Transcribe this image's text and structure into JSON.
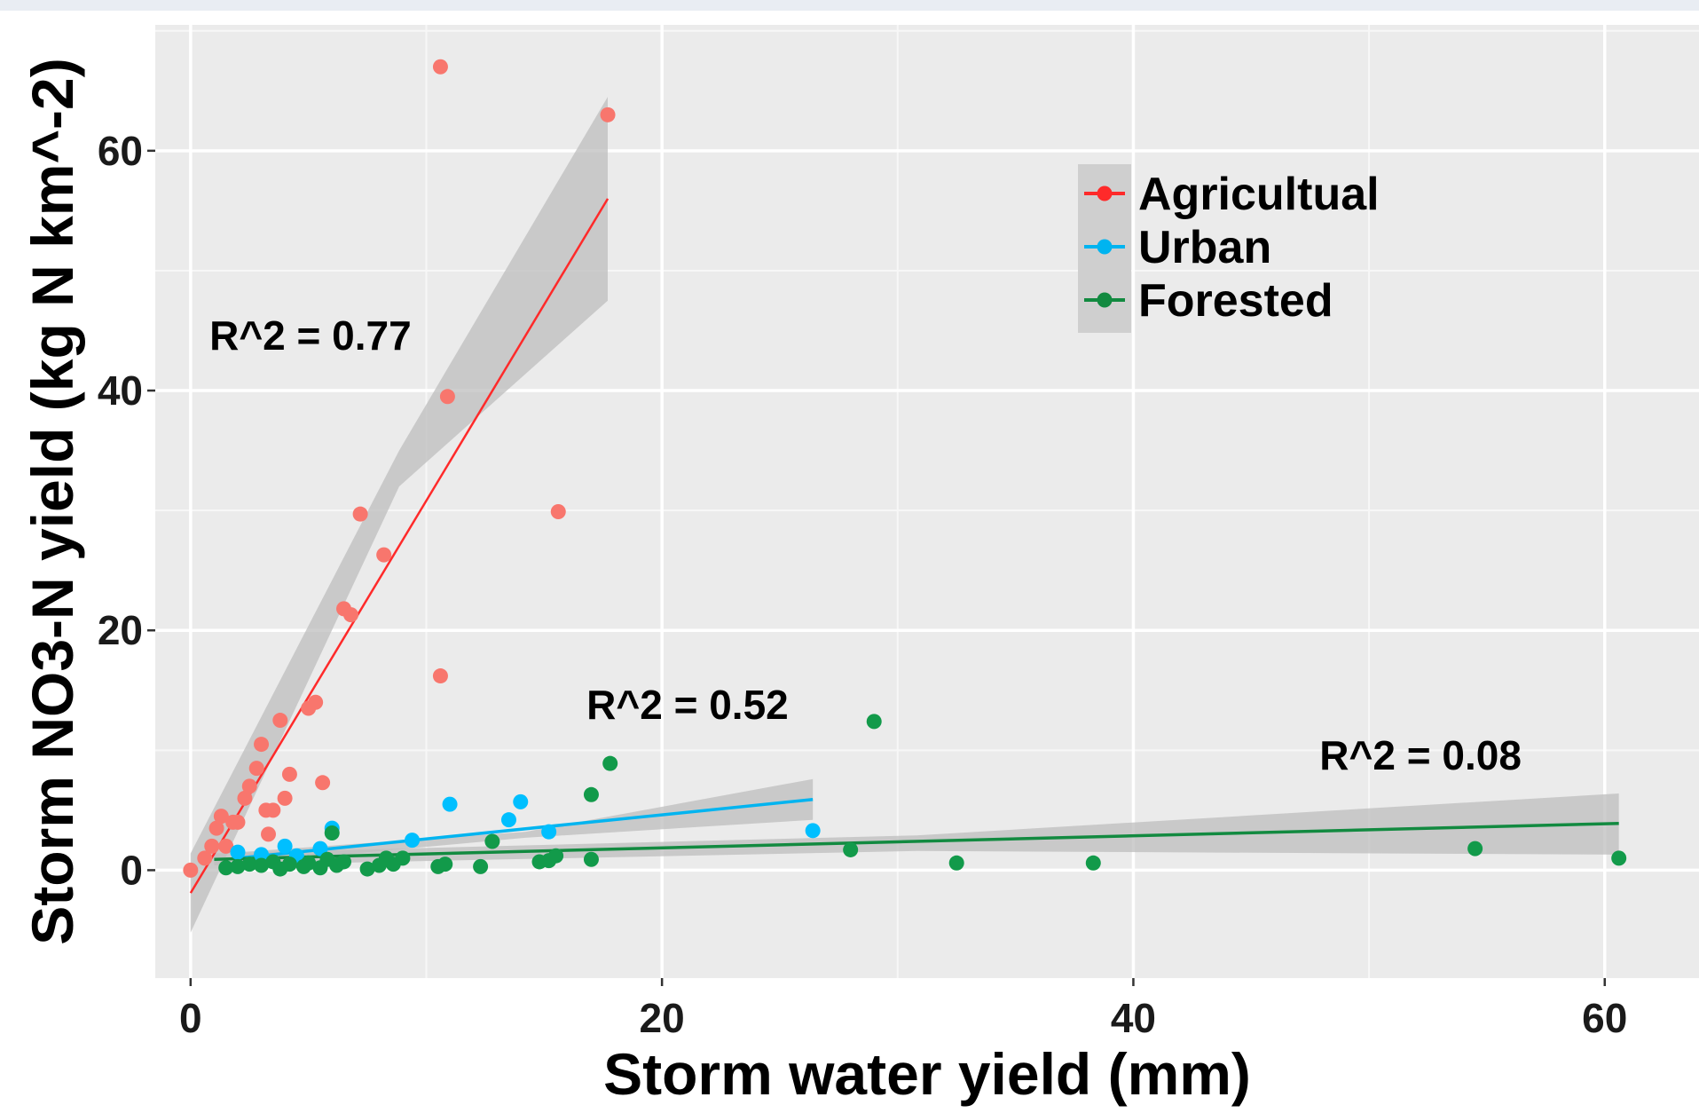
{
  "chart_data": {
    "type": "scatter",
    "title": "",
    "xlabel": "Storm water yield (mm)",
    "ylabel": "Storm NO3-N yield (kg N km^-2)",
    "xlim": [
      -1.5,
      64
    ],
    "ylim": [
      -9,
      70.5
    ],
    "x_ticks": [
      0,
      20,
      40,
      60
    ],
    "y_ticks": [
      0,
      20,
      40,
      60
    ],
    "grid": true,
    "legend_position": "top-right",
    "series": [
      {
        "name": "Agricultual",
        "color": "#f8766d",
        "line_color": "#ff2a2a",
        "x": [
          0.0,
          0.6,
          0.9,
          1.1,
          1.3,
          1.5,
          1.8,
          2.0,
          2.3,
          2.5,
          2.8,
          3.0,
          3.2,
          3.3,
          3.5,
          3.8,
          4.0,
          4.2,
          5.0,
          5.3,
          5.6,
          6.5,
          6.8,
          7.2,
          8.2,
          10.6,
          10.9,
          15.6,
          17.7,
          10.6
        ],
        "y": [
          0.0,
          1.0,
          2.0,
          3.5,
          4.5,
          2.0,
          4.0,
          4.0,
          6.0,
          7.0,
          8.5,
          10.5,
          5.0,
          3.0,
          5.0,
          12.5,
          6.0,
          8.0,
          13.5,
          14.0,
          7.3,
          21.8,
          21.3,
          29.7,
          26.3,
          16.2,
          39.5,
          29.9,
          63.0,
          67.0
        ]
      },
      {
        "name": "Urban",
        "color": "#00bfff",
        "line_color": "#00b4f0",
        "x": [
          2.0,
          3.0,
          4.0,
          4.5,
          5.5,
          6.0,
          9.4,
          11.0,
          13.5,
          14.0,
          15.2,
          26.4
        ],
        "y": [
          1.5,
          1.3,
          2.0,
          1.2,
          1.8,
          3.5,
          2.5,
          5.5,
          4.2,
          5.7,
          3.2,
          3.3
        ]
      },
      {
        "name": "Forested",
        "color": "#129a4a",
        "line_color": "#128a40",
        "x": [
          1.5,
          2.0,
          2.5,
          3.0,
          3.5,
          3.8,
          4.2,
          4.8,
          5.0,
          5.5,
          5.8,
          6.0,
          6.2,
          6.5,
          7.5,
          8.0,
          8.3,
          8.6,
          9.0,
          10.5,
          10.8,
          12.3,
          12.8,
          14.8,
          15.2,
          15.5,
          17.0,
          17.0,
          17.8,
          28.0,
          29.0,
          32.5,
          38.3,
          54.5,
          60.6
        ],
        "y": [
          0.2,
          0.3,
          0.5,
          0.4,
          0.7,
          0.1,
          0.5,
          0.3,
          0.6,
          0.2,
          0.9,
          3.1,
          0.4,
          0.7,
          0.1,
          0.4,
          1.0,
          0.5,
          1.0,
          0.3,
          0.5,
          0.3,
          2.4,
          0.7,
          0.8,
          1.2,
          6.3,
          0.9,
          8.9,
          1.7,
          12.4,
          0.6,
          0.6,
          1.8,
          1.0
        ]
      }
    ],
    "fits": [
      {
        "series": "Agricultual",
        "x_range": [
          0.0,
          17.7
        ],
        "y_at_start": -1.9,
        "y_at_end": 56.0,
        "ci_start": [
          -5.2,
          1.4
        ],
        "ci_end": [
          47.5,
          64.5
        ],
        "ci_mid": [
          32.0,
          35.0
        ],
        "r2_label": "R^2 =  0.77",
        "label_x": 0.8,
        "label_y": 43.4
      },
      {
        "series": "Urban",
        "x_range": [
          2.0,
          26.4
        ],
        "y_at_start": 1.0,
        "y_at_end": 5.9,
        "ci_start": [
          0.5,
          1.5
        ],
        "ci_end": [
          4.2,
          7.6
        ],
        "ci_mid": [
          2.7,
          3.2
        ],
        "r2_label": "R^2 =  0.52",
        "label_x": 16.8,
        "label_y": 12.6
      },
      {
        "series": "Forested",
        "x_range": [
          1.0,
          60.6
        ],
        "y_at_start": 0.9,
        "y_at_end": 3.9,
        "ci_start": [
          0.4,
          1.4
        ],
        "ci_end": [
          1.3,
          6.4
        ],
        "ci_mid": [
          1.6,
          2.9
        ],
        "r2_label": "R^2 =  0.08",
        "label_x": 47.9,
        "label_y": 8.4
      }
    ],
    "legend": [
      {
        "label": "Agricultual",
        "color": "#ff2a2a"
      },
      {
        "label": "Urban",
        "color": "#00b4f0"
      },
      {
        "label": "Forested",
        "color": "#128a40"
      }
    ],
    "panel_background": "#ebebeb",
    "ci_color": "#bdbdbd"
  }
}
